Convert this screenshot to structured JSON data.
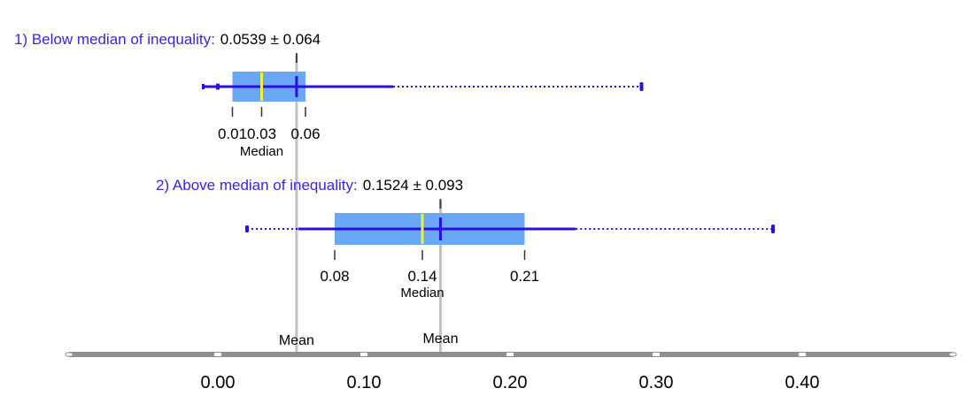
{
  "chart_data": {
    "type": "boxplot",
    "xlim": [
      -0.1,
      0.5
    ],
    "x_ticks": [
      0.0,
      0.1,
      0.2,
      0.3,
      0.4
    ],
    "x_tick_labels": [
      "0.00",
      "0.10",
      "0.20",
      "0.30",
      "0.40"
    ],
    "groups": [
      {
        "prefix": "1) Below median of inequality:",
        "stat": "0.0539 ± 0.064",
        "mean": 0.0539,
        "whisker_low": -0.01,
        "whisker_high": 0.12,
        "dotted_low": null,
        "dotted_high": 0.29,
        "outlier_point": -0.0,
        "q1": 0.01,
        "median": 0.03,
        "q3": 0.06,
        "labels": [
          "0.01",
          "0.03",
          "0.06"
        ],
        "median_label": "Median"
      },
      {
        "prefix": "2) Above median of inequality:",
        "stat": "0.1524 ± 0.093",
        "mean": 0.1524,
        "whisker_low": 0.055,
        "whisker_high": 0.245,
        "dotted_low": 0.02,
        "dotted_high": 0.38,
        "outlier_point": null,
        "q1": 0.08,
        "median": 0.14,
        "q3": 0.21,
        "labels": [
          "0.08",
          "0.14",
          "0.21"
        ],
        "median_label": "Median"
      }
    ],
    "mean_label": "Mean",
    "colors": {
      "box_fill": "#6aa8f5",
      "whisker": "#2a10e0",
      "median_line": "#f2f03a",
      "title_text": "#3d1fe8",
      "mean_line": "#c2c2c2",
      "axis": "#8f8f8f"
    }
  }
}
